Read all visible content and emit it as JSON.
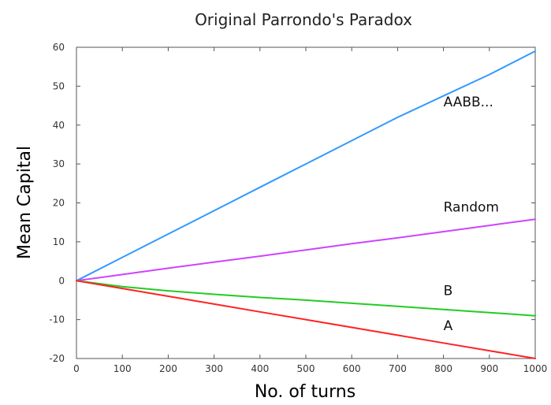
{
  "chart_data": {
    "type": "line",
    "title": "Original Parrondo's Paradox",
    "xlabel": "No. of turns",
    "ylabel": "Mean Capital",
    "xlim": [
      0,
      1000
    ],
    "ylim": [
      -20,
      60
    ],
    "xticks": [
      0,
      100,
      200,
      300,
      400,
      500,
      600,
      700,
      800,
      900,
      1000
    ],
    "yticks": [
      -20,
      -10,
      0,
      10,
      20,
      30,
      40,
      50,
      60
    ],
    "grid": false,
    "series": [
      {
        "name": "AABB...",
        "color": "#3399ff",
        "x": [
          0,
          100,
          200,
          300,
          400,
          500,
          600,
          700,
          800,
          900,
          1000
        ],
        "y": [
          0,
          6,
          12,
          18,
          24,
          30,
          36,
          42,
          47.5,
          53,
          59
        ]
      },
      {
        "name": "Random",
        "color": "#cc44ff",
        "x": [
          0,
          100,
          200,
          300,
          400,
          500,
          600,
          700,
          800,
          900,
          1000
        ],
        "y": [
          0,
          1.6,
          3.2,
          4.8,
          6.3,
          7.9,
          9.5,
          11,
          12.6,
          14.2,
          15.8
        ]
      },
      {
        "name": "B",
        "color": "#22cc22",
        "x": [
          0,
          100,
          200,
          300,
          400,
          500,
          600,
          700,
          800,
          900,
          1000
        ],
        "y": [
          0,
          -1.5,
          -2.6,
          -3.5,
          -4.3,
          -5,
          -5.8,
          -6.6,
          -7.4,
          -8.2,
          -9
        ]
      },
      {
        "name": "A",
        "color": "#ff2222",
        "x": [
          0,
          100,
          200,
          300,
          400,
          500,
          600,
          700,
          800,
          900,
          1000
        ],
        "y": [
          0,
          -2,
          -4,
          -6,
          -8,
          -10,
          -12,
          -14,
          -16,
          -18,
          -20
        ]
      }
    ],
    "annotations": [
      {
        "text": "AABB...",
        "x": 800,
        "y": 46
      },
      {
        "text": "Random",
        "x": 800,
        "y": 19
      },
      {
        "text": "B",
        "x": 800,
        "y": -2.5
      },
      {
        "text": "A",
        "x": 800,
        "y": -11.5
      }
    ]
  }
}
